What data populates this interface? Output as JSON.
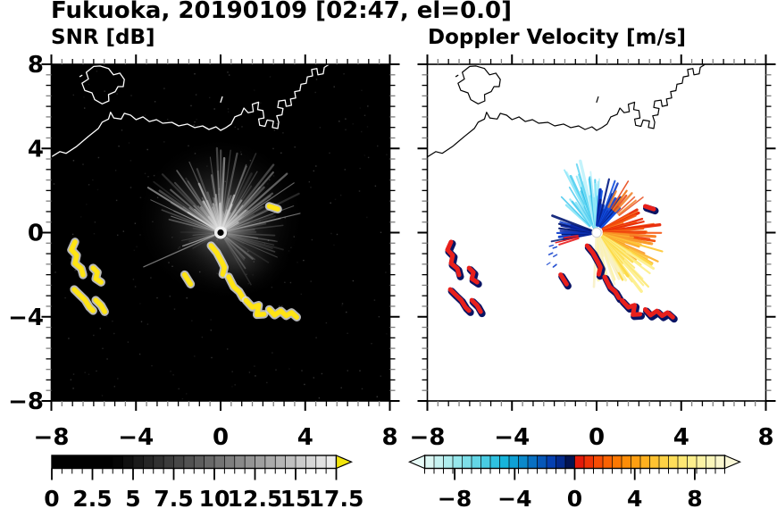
{
  "title": "Fukuoka, 20190109 [02:47, el=0.0]",
  "panels": {
    "snr": {
      "subtitle": "SNR [dB]"
    },
    "velocity": {
      "subtitle": "Doppler Velocity [m/s]"
    }
  },
  "axes": {
    "x_tick_values": [
      -8,
      -4,
      0,
      4,
      8
    ],
    "x_tick_labels": [
      "−8",
      "−4",
      "0",
      "4",
      "8"
    ],
    "y_tick_values": [
      8,
      4,
      0,
      -4,
      -8
    ],
    "y_tick_labels": [
      "8",
      "4",
      "0",
      "−4",
      "−8"
    ],
    "minor_tick_step": 0.5
  },
  "colorbars": {
    "snr": {
      "range": [
        0,
        17.5
      ],
      "tick_values": [
        0,
        2.5,
        5,
        7.5,
        10,
        12.5,
        15,
        17.5
      ],
      "tick_labels": [
        "0",
        "2.5",
        "5",
        "7.5",
        "10",
        "12.5",
        "15",
        "17.5"
      ],
      "over_arrow_color": "#f2e50c",
      "cells": [
        "#000000",
        "#000000",
        "#000000",
        "#000000",
        "#000000",
        "#000000",
        "#050505",
        "#101010",
        "#1b1b1b",
        "#262626",
        "#313131",
        "#3c3c3c",
        "#474747",
        "#525252",
        "#5d5d5d",
        "#686868",
        "#737373",
        "#7e7e7e",
        "#898989",
        "#949494",
        "#9f9f9f",
        "#aaaaaa",
        "#b5b5b5",
        "#c0c0c0",
        "#cbcbcb",
        "#d6d6d6",
        "#e1e1e1",
        "#ececec"
      ]
    },
    "velocity": {
      "range": [
        -10,
        10
      ],
      "tick_values": [
        -8,
        -4,
        0,
        4,
        8
      ],
      "tick_labels": [
        "−8",
        "−4",
        "0",
        "4",
        "8"
      ],
      "under_arrow_color": "#e7faf7",
      "over_arrow_color": "#faf8d8",
      "cells": [
        "#dbf7f4",
        "#c6f2f1",
        "#aeedee",
        "#96e7ec",
        "#7ddfe9",
        "#63d6e6",
        "#49cce3",
        "#2fc1e0",
        "#17b4db",
        "#0fa0d4",
        "#0b89cb",
        "#0870c2",
        "#0657b8",
        "#0540b0",
        "#032a8c",
        "#021352",
        "#e31a0a",
        "#ee3306",
        "#f64c04",
        "#fa6202",
        "#fc7802",
        "#fd8d08",
        "#fe9f12",
        "#feb01f",
        "#fec231",
        "#fed245",
        "#fede5a",
        "#fee873",
        "#fdef8c",
        "#fcf3a4",
        "#fbf6ba",
        "#faf7ce"
      ]
    }
  },
  "geometry": {
    "coastline": {
      "island": [
        [
          -6.0,
          7.9
        ],
        [
          -6.35,
          7.62
        ],
        [
          -6.25,
          7.3
        ],
        [
          -6.55,
          7.1
        ],
        [
          -6.42,
          6.76
        ],
        [
          -6.08,
          6.64
        ],
        [
          -5.95,
          6.32
        ],
        [
          -5.6,
          6.12
        ],
        [
          -5.28,
          6.26
        ],
        [
          -5.3,
          6.56
        ],
        [
          -4.98,
          6.7
        ],
        [
          -4.85,
          6.94
        ],
        [
          -4.6,
          6.94
        ],
        [
          -4.55,
          7.28
        ],
        [
          -4.76,
          7.58
        ],
        [
          -5.06,
          7.5
        ],
        [
          -5.3,
          7.8
        ],
        [
          -5.7,
          7.92
        ]
      ],
      "mainland": [
        [
          -8,
          3.6
        ],
        [
          -7.6,
          3.85
        ],
        [
          -7.3,
          3.77
        ],
        [
          -6.8,
          4.1
        ],
        [
          -6.25,
          4.57
        ],
        [
          -5.78,
          4.95
        ],
        [
          -5.6,
          5.25
        ],
        [
          -5.3,
          5.4
        ],
        [
          -5.2,
          5.72
        ],
        [
          -5.05,
          5.45
        ],
        [
          -4.7,
          5.4
        ],
        [
          -4.55,
          5.67
        ],
        [
          -4.25,
          5.58
        ],
        [
          -4.0,
          5.37
        ],
        [
          -3.67,
          5.5
        ],
        [
          -3.37,
          5.28
        ],
        [
          -3.03,
          5.37
        ],
        [
          -2.74,
          5.2
        ],
        [
          -2.3,
          5.24
        ],
        [
          -1.98,
          5.07
        ],
        [
          -1.56,
          5.16
        ],
        [
          -1.22,
          4.99
        ],
        [
          -0.85,
          5.07
        ],
        [
          -0.55,
          4.9
        ],
        [
          -0.22,
          5.03
        ],
        [
          0.0,
          4.86
        ],
        [
          0.25,
          4.99
        ],
        [
          0.5,
          5.16
        ],
        [
          0.67,
          5.5
        ],
        [
          0.97,
          5.62
        ],
        [
          1.1,
          5.92
        ],
        [
          1.3,
          5.7
        ],
        [
          1.55,
          5.75
        ],
        [
          1.5,
          6.1
        ],
        [
          1.8,
          6.2
        ],
        [
          1.75,
          5.85
        ],
        [
          2.0,
          5.8
        ],
        [
          2.05,
          5.45
        ],
        [
          1.8,
          5.4
        ],
        [
          1.85,
          5.1
        ],
        [
          2.1,
          5.05
        ],
        [
          2.2,
          5.35
        ],
        [
          2.5,
          5.3
        ],
        [
          2.45,
          5.0
        ],
        [
          2.7,
          4.95
        ],
        [
          2.75,
          5.25
        ],
        [
          2.65,
          5.55
        ],
        [
          2.9,
          5.6
        ],
        [
          2.95,
          5.9
        ],
        [
          2.7,
          5.95
        ],
        [
          2.75,
          6.25
        ],
        [
          3.05,
          6.3
        ],
        [
          3.1,
          6.0
        ],
        [
          3.35,
          6.05
        ],
        [
          3.3,
          6.35
        ],
        [
          3.55,
          6.4
        ],
        [
          3.5,
          6.7
        ],
        [
          3.75,
          6.75
        ],
        [
          3.8,
          7.05
        ],
        [
          4.05,
          7.1
        ],
        [
          4.1,
          7.4
        ],
        [
          4.35,
          7.45
        ],
        [
          4.3,
          7.75
        ],
        [
          4.55,
          7.8
        ],
        [
          4.6,
          7.5
        ],
        [
          4.85,
          7.55
        ],
        [
          4.9,
          7.85
        ],
        [
          5.1,
          7.98
        ]
      ],
      "marks": [
        [
          [
            -6.65,
            7.42
          ],
          [
            -6.55,
            7.48
          ]
        ],
        [
          [
            0.0,
            6.2
          ],
          [
            0.08,
            6.45
          ]
        ]
      ]
    },
    "clutter_km": [
      [
        [
          -6.88,
          -0.44
        ],
        [
          -7.05,
          -0.82
        ],
        [
          -6.8,
          -1.08
        ],
        [
          -6.88,
          -1.46
        ],
        [
          -6.58,
          -1.71
        ],
        [
          -6.5,
          -2.01
        ]
      ],
      [
        [
          -6.03,
          -1.68
        ],
        [
          -5.82,
          -1.89
        ],
        [
          -5.9,
          -2.19
        ],
        [
          -5.65,
          -2.36
        ]
      ],
      [
        [
          -6.92,
          -2.7
        ],
        [
          -6.67,
          -2.95
        ],
        [
          -6.41,
          -3.2
        ],
        [
          -6.2,
          -3.54
        ],
        [
          -6.03,
          -3.71
        ]
      ],
      [
        [
          -5.9,
          -3.21
        ],
        [
          -5.65,
          -3.46
        ],
        [
          -5.48,
          -3.76
        ]
      ],
      [
        [
          -1.7,
          -2.0
        ],
        [
          -1.42,
          -2.45
        ]
      ],
      [
        [
          2.3,
          1.25
        ],
        [
          2.7,
          1.12
        ]
      ],
      [
        [
          -0.45,
          -0.62
        ],
        [
          -0.18,
          -0.95
        ],
        [
          0.05,
          -1.38
        ],
        [
          0.18,
          -1.65
        ],
        [
          0.1,
          -1.98
        ]
      ],
      [
        [
          0.38,
          -2.1
        ],
        [
          0.62,
          -2.58
        ],
        [
          0.88,
          -2.8
        ],
        [
          1.05,
          -3.1
        ]
      ],
      [
        [
          1.2,
          -3.22
        ],
        [
          1.5,
          -3.55
        ],
        [
          1.8,
          -3.45
        ],
        [
          1.72,
          -3.9
        ],
        [
          2.05,
          -3.88
        ]
      ],
      [
        [
          2.3,
          -3.65
        ],
        [
          2.55,
          -3.92
        ],
        [
          2.85,
          -3.72
        ],
        [
          3.1,
          -3.95
        ],
        [
          3.35,
          -3.8
        ],
        [
          3.6,
          -4.02
        ]
      ]
    ],
    "snr_fan_bands": [
      {
        "a0": -75,
        "a1": 75,
        "r0": 0.3,
        "r1": 4.3,
        "n": 52,
        "cols": [
          "#ffffff",
          "#c8c8c8",
          "#9a9a9a"
        ],
        "op0": 0.15,
        "op1": 0.5,
        "w0": 1.0,
        "w1": 2.6
      },
      {
        "a0": -60,
        "a1": 60,
        "r0": 0.3,
        "r1": 2.2,
        "n": 30,
        "cols": [
          "#e0e0e0"
        ],
        "op0": 0.2,
        "op1": 0.6,
        "w0": 1.2,
        "w1": 2.8
      },
      {
        "a0": 55,
        "a1": 108,
        "r0": 0.4,
        "r1": 3.3,
        "n": 16,
        "cols": [
          "#b0b0b0",
          "#8a8a8a"
        ],
        "op0": 0.15,
        "op1": 0.45,
        "w0": 1.0,
        "w1": 2.2
      },
      {
        "a0": 100,
        "a1": 148,
        "r0": 0.4,
        "r1": 3.1,
        "n": 12,
        "cols": [
          "#a0a0a0"
        ],
        "op0": 0.12,
        "op1": 0.4,
        "w0": 1.0,
        "w1": 2.0
      },
      {
        "a0": -118,
        "a1": -82,
        "r0": 0.4,
        "r1": 2.0,
        "n": 7,
        "cols": [
          "#909090"
        ],
        "op0": 0.12,
        "op1": 0.35,
        "w0": 1.0,
        "w1": 1.8
      },
      {
        "a0": -112.5,
        "a1": -111,
        "r0": 0.3,
        "r1": 4.4,
        "n": 2,
        "cols": [
          "#c8c8c8"
        ],
        "op0": 0.55,
        "op1": 0.65,
        "w0": 1.2,
        "w1": 1.6
      }
    ],
    "velocity_fan_bands": [
      {
        "a0": -28,
        "a1": 6,
        "r0": 0.3,
        "r1": 3.5,
        "n": 26,
        "cols": [
          "#c2f3fb",
          "#8fe7f8",
          "#55d1f1",
          "#2fbde8"
        ],
        "op0": 0.8,
        "op1": 1,
        "w0": 1.6,
        "w1": 3.4
      },
      {
        "a0": -46,
        "a1": -24,
        "r0": 0.5,
        "r1": 2.6,
        "n": 8,
        "cols": [
          "#8fe7f8",
          "#49c9ee"
        ],
        "op0": 0.8,
        "op1": 1,
        "w0": 1.4,
        "w1": 2.6
      },
      {
        "a0": 4,
        "a1": 44,
        "r0": 0.4,
        "r1": 2.7,
        "n": 20,
        "cols": [
          "#0a35c0",
          "#1250e0",
          "#051d86"
        ],
        "op0": 0.85,
        "op1": 1,
        "w0": 1.8,
        "w1": 3.6
      },
      {
        "a0": 26,
        "a1": 54,
        "r0": 1.5,
        "r1": 2.9,
        "n": 8,
        "cols": [
          "#f07c20",
          "#e84614"
        ],
        "op0": 0.8,
        "op1": 1,
        "w0": 1.4,
        "w1": 2.6
      },
      {
        "a0": 60,
        "a1": 98,
        "r0": 0.4,
        "r1": 3.1,
        "n": 20,
        "cols": [
          "#e82806",
          "#f4540f",
          "#f87b1c"
        ],
        "op0": 0.85,
        "op1": 1,
        "w0": 1.8,
        "w1": 3.4
      },
      {
        "a0": 96,
        "a1": 124,
        "r0": 0.4,
        "r1": 3.3,
        "n": 16,
        "cols": [
          "#f89426",
          "#fcb332",
          "#fdc93a"
        ],
        "op0": 0.85,
        "op1": 1,
        "w0": 1.8,
        "w1": 3.4
      },
      {
        "a0": 120,
        "a1": 152,
        "r0": 0.4,
        "r1": 3.6,
        "n": 20,
        "cols": [
          "#fdd946",
          "#fce76e",
          "#fdef8e"
        ],
        "op0": 0.85,
        "op1": 1,
        "w0": 1.8,
        "w1": 3.6
      },
      {
        "a0": 148,
        "a1": 182,
        "r0": 0.3,
        "r1": 2.7,
        "n": 14,
        "cols": [
          "#fbf2a8",
          "#f8f0c6"
        ],
        "op0": 0.85,
        "op1": 1,
        "w0": 1.8,
        "w1": 3.2
      },
      {
        "a0": -102,
        "a1": -70,
        "r0": 0.3,
        "r1": 2.3,
        "n": 14,
        "cols": [
          "#0a28a8",
          "#051a74",
          "#1040cc"
        ],
        "op0": 0.85,
        "op1": 1,
        "w0": 1.8,
        "w1": 3.4
      },
      {
        "a0": -106,
        "a1": -99,
        "r0": 1.0,
        "r1": 2.1,
        "n": 3,
        "cols": [
          "#e82020"
        ],
        "op0": 0.9,
        "op1": 1,
        "w0": 1.4,
        "w1": 2.0
      },
      {
        "a0": -128,
        "a1": -106,
        "r0": 1.7,
        "r1": 2.8,
        "n": 6,
        "cols": [
          "#1040cc"
        ],
        "op0": 0.8,
        "op1": 1,
        "w0": 1.2,
        "w1": 1.8,
        "dash": true
      }
    ]
  },
  "chart_data": [
    {
      "type": "heatmap",
      "panel": "left",
      "title": "SNR [dB]",
      "x_range": [
        -8,
        8
      ],
      "y_range": [
        -8,
        8
      ],
      "x_ticks": [
        -8,
        -4,
        0,
        4,
        8
      ],
      "y_ticks": [
        8,
        4,
        0,
        -4,
        -8
      ],
      "minor_tick_step": 0.5,
      "background": "#000000",
      "colorbar": {
        "range": [
          0,
          17.5
        ],
        "major_ticks": [
          0,
          2.5,
          5,
          7.5,
          10,
          12.5,
          15,
          17.5
        ],
        "cell_step": 0.625,
        "colormap": "black-to-white grayscale with yellow over-range arrow"
      },
      "features": [
        {
          "name": "radar-site",
          "x": 0,
          "y": 0
        },
        {
          "name": "clutter-fan",
          "description": "gray radial streaks of weak SNR (~2-10 dB) fanning mainly north/northeast of the radar out to ~4 km"
        },
        {
          "name": "strong-echo-arc-west",
          "description": "SNR > 17.5 dB (yellow) broken arc",
          "extent_km": [
            [
              -7.1,
              -0.4
            ],
            [
              -5.4,
              -3.8
            ]
          ]
        },
        {
          "name": "strong-echo-chain-southeast",
          "description": "SNR > 17.5 dB (yellow) chain from radar toward southeast",
          "extent_km": [
            [
              -0.5,
              -0.6
            ],
            [
              3.6,
              -4.0
            ]
          ]
        },
        {
          "name": "coastline",
          "description": "white coastline: island northwest, wiggly shore, harbor piers northeast"
        }
      ]
    },
    {
      "type": "heatmap",
      "panel": "right",
      "title": "Doppler Velocity [m/s]",
      "x_range": [
        -8,
        8
      ],
      "y_range": [
        -8,
        8
      ],
      "x_ticks": [
        -8,
        -4,
        0,
        4,
        8
      ],
      "y_ticks": [
        8,
        4,
        0,
        -4,
        -8
      ],
      "minor_tick_step": 0.5,
      "background": "#ffffff",
      "colorbar": {
        "range": [
          -10,
          10
        ],
        "major_ticks": [
          -8,
          -4,
          0,
          4,
          8
        ],
        "cell_step": 0.625,
        "colormap": "pale-cyan to navy (negative) / red to pale-yellow (positive), arrows both ends"
      },
      "features": [
        {
          "name": "radar-site",
          "x": 0,
          "y": 0
        },
        {
          "name": "approaching-flow",
          "description": "negative velocities: cyan (−8…−3 m/s) north-northwest fan, navy (−2…0 m/s) north-northeast and west of radar"
        },
        {
          "name": "receding-flow",
          "description": "positive velocities: red (+1…+3) east, orange (+3…+6) east-southeast, yellow/pale-yellow (+6…+9 m/s) south-southeast fan"
        },
        {
          "name": "clutter-arcs",
          "description": "red with navy fringe over the same arcs as the SNR panel yellow echoes"
        }
      ]
    }
  ]
}
